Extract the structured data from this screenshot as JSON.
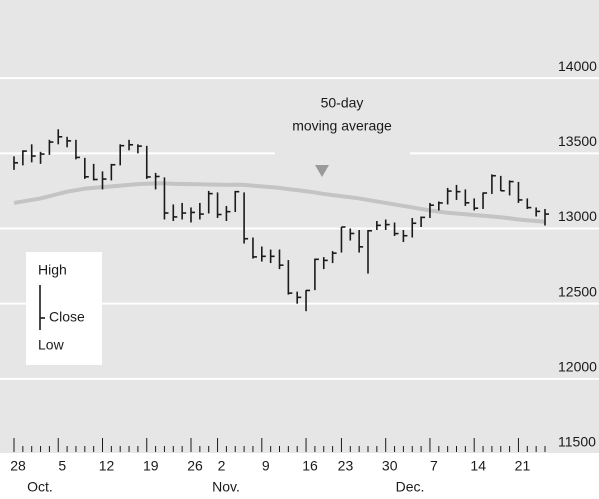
{
  "chart_data": {
    "type": "hlc",
    "categories": [
      "28",
      null,
      null,
      null,
      null,
      "5",
      null,
      null,
      null,
      null,
      "12",
      null,
      null,
      null,
      null,
      "19",
      null,
      null,
      null,
      null,
      "26",
      null,
      null,
      "2",
      null,
      null,
      null,
      null,
      "9",
      null,
      null,
      null,
      null,
      "16",
      null,
      null,
      null,
      "23",
      null,
      null,
      null,
      null,
      "30",
      null,
      null,
      null,
      null,
      "7",
      null,
      null,
      null,
      null,
      "14",
      null,
      null,
      null,
      null,
      "21",
      null,
      null,
      null
    ],
    "months": [
      "Oct.",
      "Nov.",
      "Dec."
    ],
    "series": [
      {
        "name": "High",
        "color": "#1a1a1a",
        "values": [
          13480,
          13520,
          13560,
          13510,
          13590,
          13660,
          13610,
          13590,
          13470,
          13430,
          13380,
          13430,
          13560,
          13590,
          13560,
          13550,
          13370,
          13340,
          13160,
          13170,
          13140,
          13170,
          13250,
          13240,
          13150,
          13250,
          13240,
          12940,
          12880,
          12860,
          12860,
          12790,
          12580,
          12590,
          12800,
          12810,
          12850,
          13010,
          13000,
          12990,
          12990,
          13050,
          13060,
          13040,
          12990,
          13070,
          13080,
          13170,
          13180,
          13270,
          13290,
          13260,
          13200,
          13240,
          13360,
          13350,
          13320,
          13310,
          13200,
          13140,
          13130
        ]
      },
      {
        "name": "Low",
        "color": "#1a1a1a",
        "values": [
          13390,
          13420,
          13440,
          13430,
          13490,
          13560,
          13540,
          13460,
          13330,
          13320,
          13260,
          13320,
          13420,
          13520,
          13500,
          13330,
          13260,
          13060,
          13050,
          13060,
          13040,
          13060,
          13100,
          13070,
          13050,
          13110,
          12900,
          12800,
          12780,
          12770,
          12730,
          12560,
          12500,
          12450,
          12590,
          12730,
          12770,
          12840,
          12920,
          12840,
          12700,
          12990,
          12990,
          12950,
          12910,
          12940,
          13010,
          13070,
          13120,
          13160,
          13190,
          13150,
          13120,
          13130,
          13230,
          13250,
          13220,
          13170,
          13130,
          13080,
          13020
        ]
      },
      {
        "name": "Close",
        "color": "#1a1a1a",
        "values": [
          13437,
          13515,
          13482,
          13495,
          13575,
          13610,
          13583,
          13473,
          13344,
          13326,
          13329,
          13424,
          13551,
          13557,
          13548,
          13343,
          13346,
          13103,
          13077,
          13103,
          13107,
          13096,
          13232,
          13093,
          13112,
          13245,
          12932,
          12811,
          12815,
          12815,
          12756,
          12570,
          12542,
          12588,
          12795,
          12788,
          12836,
          13010,
          12967,
          12878,
          12985,
          13021,
          13026,
          12966,
          12952,
          13035,
          13074,
          13155,
          13170,
          13249,
          13245,
          13171,
          13135,
          13236,
          13351,
          13251,
          13312,
          13190,
          13139,
          13114,
          13096
        ]
      },
      {
        "name": "50-day moving average",
        "color": "#c4c4c4",
        "values": [
          13170,
          13180,
          13190,
          13200,
          13215,
          13230,
          13245,
          13255,
          13265,
          13270,
          13275,
          13280,
          13285,
          13290,
          13295,
          13298,
          13300,
          13300,
          13298,
          13296,
          13295,
          13294,
          13293,
          13292,
          13290,
          13292,
          13290,
          13285,
          13280,
          13275,
          13270,
          13262,
          13255,
          13248,
          13240,
          13230,
          13222,
          13215,
          13208,
          13200,
          13190,
          13180,
          13170,
          13160,
          13150,
          13140,
          13130,
          13120,
          13112,
          13105,
          13100,
          13095,
          13090,
          13085,
          13080,
          13075,
          13068,
          13060,
          13055,
          13050,
          13045
        ]
      }
    ],
    "annotation": [
      "50-day",
      "moving average"
    ],
    "ylim": [
      11500,
      14520
    ],
    "yticks": [
      11500,
      12000,
      12500,
      13000,
      13500,
      14000
    ],
    "grid": true,
    "background": "#e6e6e6"
  }
}
